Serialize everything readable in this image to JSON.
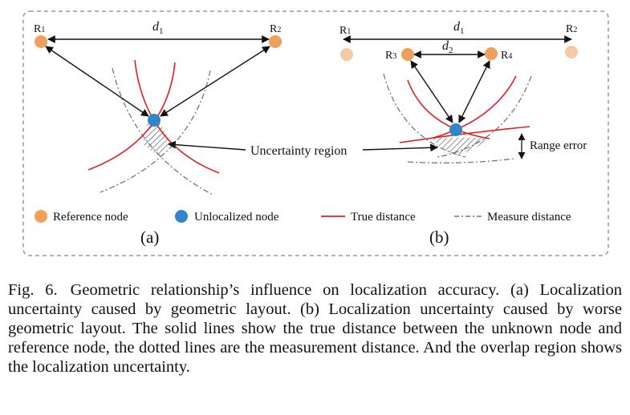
{
  "panel_a": {
    "r1": "R",
    "r1_sub": "1",
    "r2": "R",
    "r2_sub": "2",
    "d": "d",
    "d_sub": "1",
    "label": "(a)"
  },
  "panel_b": {
    "r1": "R",
    "r1_sub": "1",
    "r2": "R",
    "r2_sub": "2",
    "r3": "R",
    "r3_sub": "3",
    "r4": "R",
    "r4_sub": "4",
    "d1": "d",
    "d1_sub": "1",
    "d2": "d",
    "d2_sub": "2",
    "range_error": "Range error",
    "label": "(b)"
  },
  "uncertainty_label": "Uncertainty region",
  "legend": {
    "reference": "Reference node",
    "unlocalized": "Unlocalized node",
    "true_distance": "True distance",
    "measure_distance": "Measure distance"
  },
  "colors": {
    "reference_node": "#f0a05a",
    "reference_node_faded": "#f6c9a6",
    "unlocalized_node": "#2f86c8",
    "true_distance": "#e02020",
    "measure_distance": "#777777"
  },
  "caption": {
    "label": "Fig. 6.",
    "text": "Geometric relationship’s influence on localization accuracy. (a) Localization uncertainty caused by geometric layout. (b) Localization uncertainty caused by worse geometric layout. The solid lines show the true distance between the unknown node and reference node, the dotted lines are the measurement distance. And the overlap region shows the localization uncertainty."
  }
}
